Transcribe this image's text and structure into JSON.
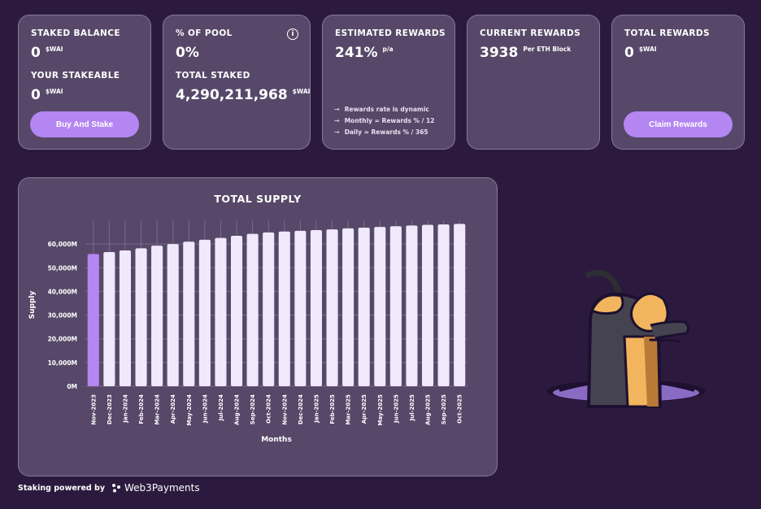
{
  "cards": {
    "staked": {
      "label": "STAKED BALANCE",
      "value": "0",
      "unit": "$WAI",
      "stakeable_label": "YOUR STAKEABLE",
      "stakeable_value": "0",
      "stakeable_unit": "$WAI",
      "button_label": "Buy And Stake"
    },
    "pool": {
      "label": "% OF POOL",
      "value": "0%",
      "info_icon": "info-icon",
      "total_staked_label": "TOTAL STAKED",
      "total_staked_value": "4,290,211,968",
      "total_staked_unit": "$WAI"
    },
    "estimated": {
      "label": "ESTIMATED REWARDS",
      "value": "241%",
      "unit": "p/a",
      "notes": [
        "Rewards rate is dynamic",
        "Monthly = Rewards % / 12",
        "Daily = Rewards % / 365"
      ]
    },
    "current": {
      "label": "CURRENT REWARDS",
      "value": "3938",
      "unit": "Per ETH Block"
    },
    "total": {
      "label": "TOTAL REWARDS",
      "value": "0",
      "unit": "$WAI",
      "button_label": "Claim Rewards"
    }
  },
  "chart_data": {
    "type": "bar",
    "title": "TOTAL SUPPLY",
    "xlabel": "Months",
    "ylabel": "Supply",
    "ylim": [
      0,
      70000
    ],
    "yticks": [
      0,
      10000,
      20000,
      30000,
      40000,
      50000,
      60000
    ],
    "ytick_labels": [
      "0M",
      "10,000M",
      "20,000M",
      "30,000M",
      "40,000M",
      "50,000M",
      "60,000M"
    ],
    "grid": true,
    "categories": [
      "Nov-2023",
      "Dec-2023",
      "Jan-2024",
      "Feb-2024",
      "Mar-2024",
      "Apr-2024",
      "May-2024",
      "Jun-2024",
      "Jul-2024",
      "Aug-2024",
      "Sep-2024",
      "Oct-2024",
      "Nov-2024",
      "Dec-2024",
      "Jan-2025",
      "Feb-2025",
      "Mar-2025",
      "Apr-2025",
      "May-2025",
      "Jun-2025",
      "Jul-2025",
      "Aug-2025",
      "Sep-2025",
      "Oct-2025"
    ],
    "values": [
      55800,
      56600,
      57300,
      58200,
      59300,
      60000,
      61000,
      61800,
      62600,
      63500,
      64300,
      64900,
      65300,
      65600,
      65900,
      66200,
      66600,
      66900,
      67200,
      67500,
      67800,
      68100,
      68300,
      68500
    ],
    "highlight_index": 0,
    "colors": {
      "highlight": "#b486f2",
      "bar": "#efe9fb",
      "grid": "#7a6a8c"
    }
  },
  "footer": {
    "label": "Staking powered by",
    "brand": "Web3Payments"
  },
  "mascot_icon": "worm-mascot-icon"
}
